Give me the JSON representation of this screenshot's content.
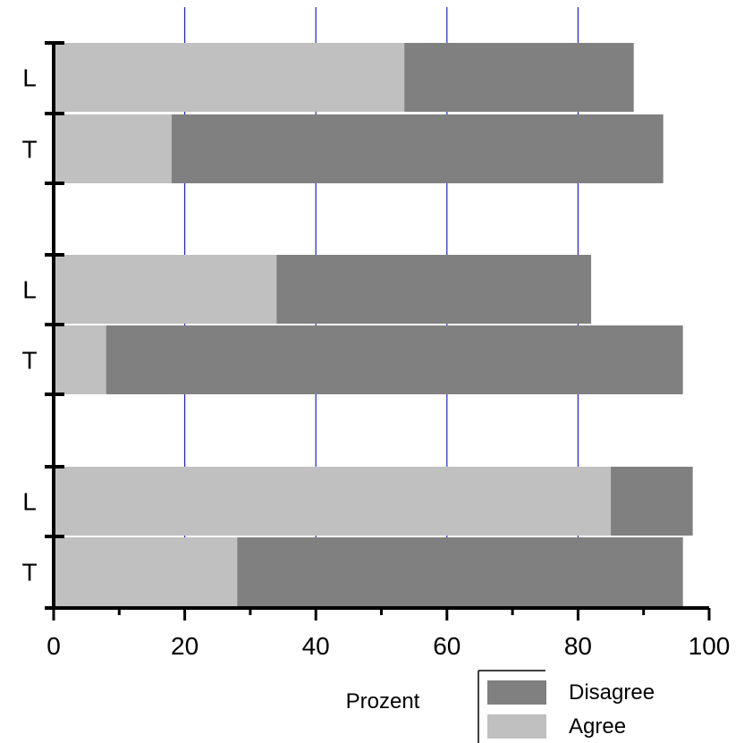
{
  "chart_data": {
    "type": "bar",
    "orientation": "horizontal",
    "stacked": true,
    "xlabel": "Prozent",
    "xlim": [
      0,
      100
    ],
    "x_ticks": [
      "0",
      "20",
      "40",
      "60",
      "80",
      "100"
    ],
    "grid": "vertical",
    "legend_position": "bottom-right",
    "categories": [
      "L",
      "T",
      "L",
      "T",
      "L",
      "T"
    ],
    "series": [
      {
        "name": "Agree",
        "color": "#c0c0c0",
        "values": [
          53.5,
          18,
          34,
          8,
          85,
          28
        ]
      },
      {
        "name": "Disagree",
        "color": "#808080",
        "values": [
          35,
          75,
          48,
          88,
          12.5,
          68
        ]
      }
    ],
    "legend": [
      "Disagree",
      "Agree"
    ],
    "gridline_color": "#2222cc"
  }
}
